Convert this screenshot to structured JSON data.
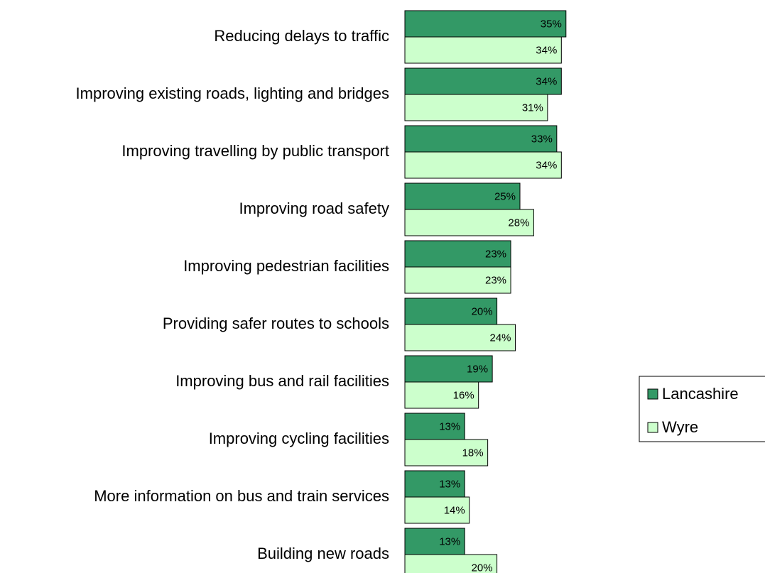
{
  "chart_data": {
    "type": "bar",
    "orientation": "horizontal",
    "categories": [
      "Reducing delays to traffic",
      "Improving existing roads, lighting and bridges",
      "Improving travelling by public transport",
      "Improving road safety",
      "Improving pedestrian facilities",
      "Providing safer routes to schools",
      "Improving bus and rail facilities",
      "Improving cycling facilities",
      "More information on bus and train services",
      "Building new roads"
    ],
    "series": [
      {
        "name": "Lancashire",
        "color": "#339966",
        "values": [
          35,
          34,
          33,
          25,
          23,
          20,
          19,
          13,
          13,
          13
        ],
        "value_labels": [
          "35%",
          "34%",
          "33%",
          "25%",
          "23%",
          "20%",
          "19%",
          "13%",
          "13%",
          "13%"
        ]
      },
      {
        "name": "Wyre",
        "color": "#ccffcc",
        "values": [
          34,
          31,
          34,
          28,
          23,
          24,
          16,
          18,
          14,
          20
        ],
        "value_labels": [
          "34%",
          "31%",
          "34%",
          "28%",
          "23%",
          "24%",
          "16%",
          "18%",
          "14%",
          "20%"
        ]
      }
    ],
    "legend": "right"
  }
}
